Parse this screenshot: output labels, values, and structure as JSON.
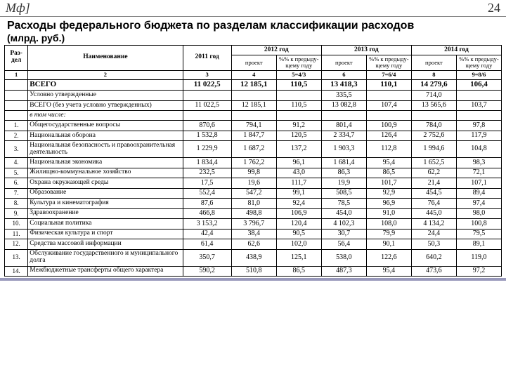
{
  "header": {
    "logo": "Мф]",
    "page": "24"
  },
  "title": "Расходы федерального бюджета по разделам классификации расходов",
  "subtitle": "(млрд. руб.)",
  "columns": {
    "raz": "Раз-\nдел",
    "name": "Наименование",
    "y2011": "2011 год",
    "y2012": "2012 год",
    "y2013": "2013 год",
    "y2014": "2014 год",
    "proekt": "проект",
    "pct": "%% к предыду-щему году"
  },
  "num_head": [
    "1",
    "2",
    "3",
    "4",
    "5=4/3",
    "6",
    "7=6/4",
    "8",
    "9=8/6"
  ],
  "rows": [
    {
      "idx": "",
      "cls": "totals",
      "name": "ВСЕГО",
      "v": [
        "11 022,5",
        "12 185,1",
        "110,5",
        "13 418,3",
        "110,1",
        "14 279,6",
        "106,4"
      ]
    },
    {
      "idx": "",
      "name": "Условно утвержденные",
      "v": [
        "",
        "",
        "",
        "335,5",
        "",
        "714,0",
        ""
      ]
    },
    {
      "idx": "",
      "name": "ВСЕГО (без учета условно утвержденных)",
      "v": [
        "11 022,5",
        "12 185,1",
        "110,5",
        "13 082,8",
        "107,4",
        "13 565,6",
        "103,7"
      ]
    },
    {
      "idx": "",
      "cls": "italic",
      "name": "в том числе:",
      "v": [
        "",
        "",
        "",
        "",
        "",
        "",
        ""
      ]
    },
    {
      "idx": "1.",
      "name": "Общегосударственные вопросы",
      "v": [
        "870,6",
        "794,1",
        "91,2",
        "801,4",
        "100,9",
        "784,0",
        "97,8"
      ]
    },
    {
      "idx": "2.",
      "name": "Национальная оборона",
      "v": [
        "1 532,8",
        "1 847,7",
        "120,5",
        "2 334,7",
        "126,4",
        "2 752,6",
        "117,9"
      ]
    },
    {
      "idx": "3.",
      "name": "Национальная безопасность и правоохранительная деятельность",
      "v": [
        "1 229,9",
        "1 687,2",
        "137,2",
        "1 903,3",
        "112,8",
        "1 994,6",
        "104,8"
      ]
    },
    {
      "idx": "4.",
      "name": "Национальная экономика",
      "v": [
        "1 834,4",
        "1 762,2",
        "96,1",
        "1 681,4",
        "95,4",
        "1 652,5",
        "98,3"
      ]
    },
    {
      "idx": "5.",
      "name": "Жилищно-коммунальное хозяйство",
      "v": [
        "232,5",
        "99,8",
        "43,0",
        "86,3",
        "86,5",
        "62,2",
        "72,1"
      ]
    },
    {
      "idx": "6.",
      "name": "Охрана окружающей среды",
      "v": [
        "17,5",
        "19,6",
        "111,7",
        "19,9",
        "101,7",
        "21,4",
        "107,1"
      ]
    },
    {
      "idx": "7.",
      "name": "Образование",
      "v": [
        "552,4",
        "547,2",
        "99,1",
        "508,5",
        "92,9",
        "454,5",
        "89,4"
      ]
    },
    {
      "idx": "8.",
      "name": "Культура и кинематография",
      "v": [
        "87,6",
        "81,0",
        "92,4",
        "78,5",
        "96,9",
        "76,4",
        "97,4"
      ]
    },
    {
      "idx": "9.",
      "name": "Здравоохранение",
      "v": [
        "466,8",
        "498,8",
        "106,9",
        "454,0",
        "91,0",
        "445,0",
        "98,0"
      ]
    },
    {
      "idx": "10.",
      "name": "Социальная политика",
      "v": [
        "3 153,2",
        "3 796,7",
        "120,4",
        "4 102,3",
        "108,0",
        "4 134,2",
        "100,8"
      ]
    },
    {
      "idx": "11.",
      "name": "Физическая культура и спорт",
      "v": [
        "42,4",
        "38,4",
        "90,5",
        "30,7",
        "79,9",
        "24,4",
        "79,5"
      ]
    },
    {
      "idx": "12.",
      "name": "Средства массовой информации",
      "v": [
        "61,4",
        "62,6",
        "102,0",
        "56,4",
        "90,1",
        "50,3",
        "89,1"
      ]
    },
    {
      "idx": "13.",
      "name": "Обслуживание государственного и муниципального долга",
      "v": [
        "350,7",
        "438,9",
        "125,1",
        "538,0",
        "122,6",
        "640,2",
        "119,0"
      ]
    },
    {
      "idx": "14.",
      "name": "Межбюджетные трансферты общего характера",
      "v": [
        "590,2",
        "510,8",
        "86,5",
        "487,3",
        "95,4",
        "473,6",
        "97,2"
      ]
    }
  ]
}
